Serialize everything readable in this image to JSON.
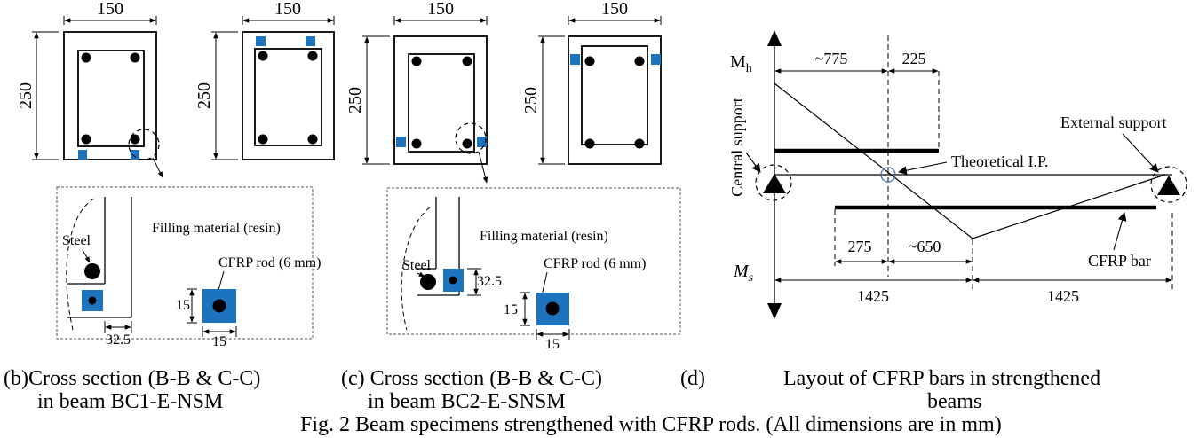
{
  "dims": {
    "width": "150",
    "height": "250",
    "spacing": "32.5",
    "square": "15",
    "d775": "~775",
    "d225": "225",
    "d275": "275",
    "d650": "~650",
    "d1425a": "1425",
    "d1425b": "1425"
  },
  "labels": {
    "steel": "Steel",
    "filling": "Filling material (resin)",
    "cfrp_rod": "CFRP rod (6 mm)",
    "mh": "M",
    "mh_sub": "h",
    "ms": "M",
    "ms_sub": "s",
    "central_support": "Central support",
    "external_support": "External support",
    "theoretical_ip": "Theoretical I.P.",
    "cfrp_bar": "CFRP bar"
  },
  "captions": {
    "b_line1": "(b)Cross section (B-B & C-C)",
    "b_line2": "in beam BC1-E-NSM",
    "c_line1": "(c) Cross section (B-B & C-C)",
    "c_line2": "in beam BC2-E-SNSM",
    "d_tag": "(d)",
    "d_line1": "Layout of CFRP bars in strengthened",
    "d_line2": "beams",
    "figure": "Fig. 2 Beam specimens strengthened with CFRP rods. (All dimensions are in mm)"
  },
  "colors": {
    "cfrp": "#1e73be",
    "line": "#000000",
    "ip_circle": "#4a6fb5"
  }
}
